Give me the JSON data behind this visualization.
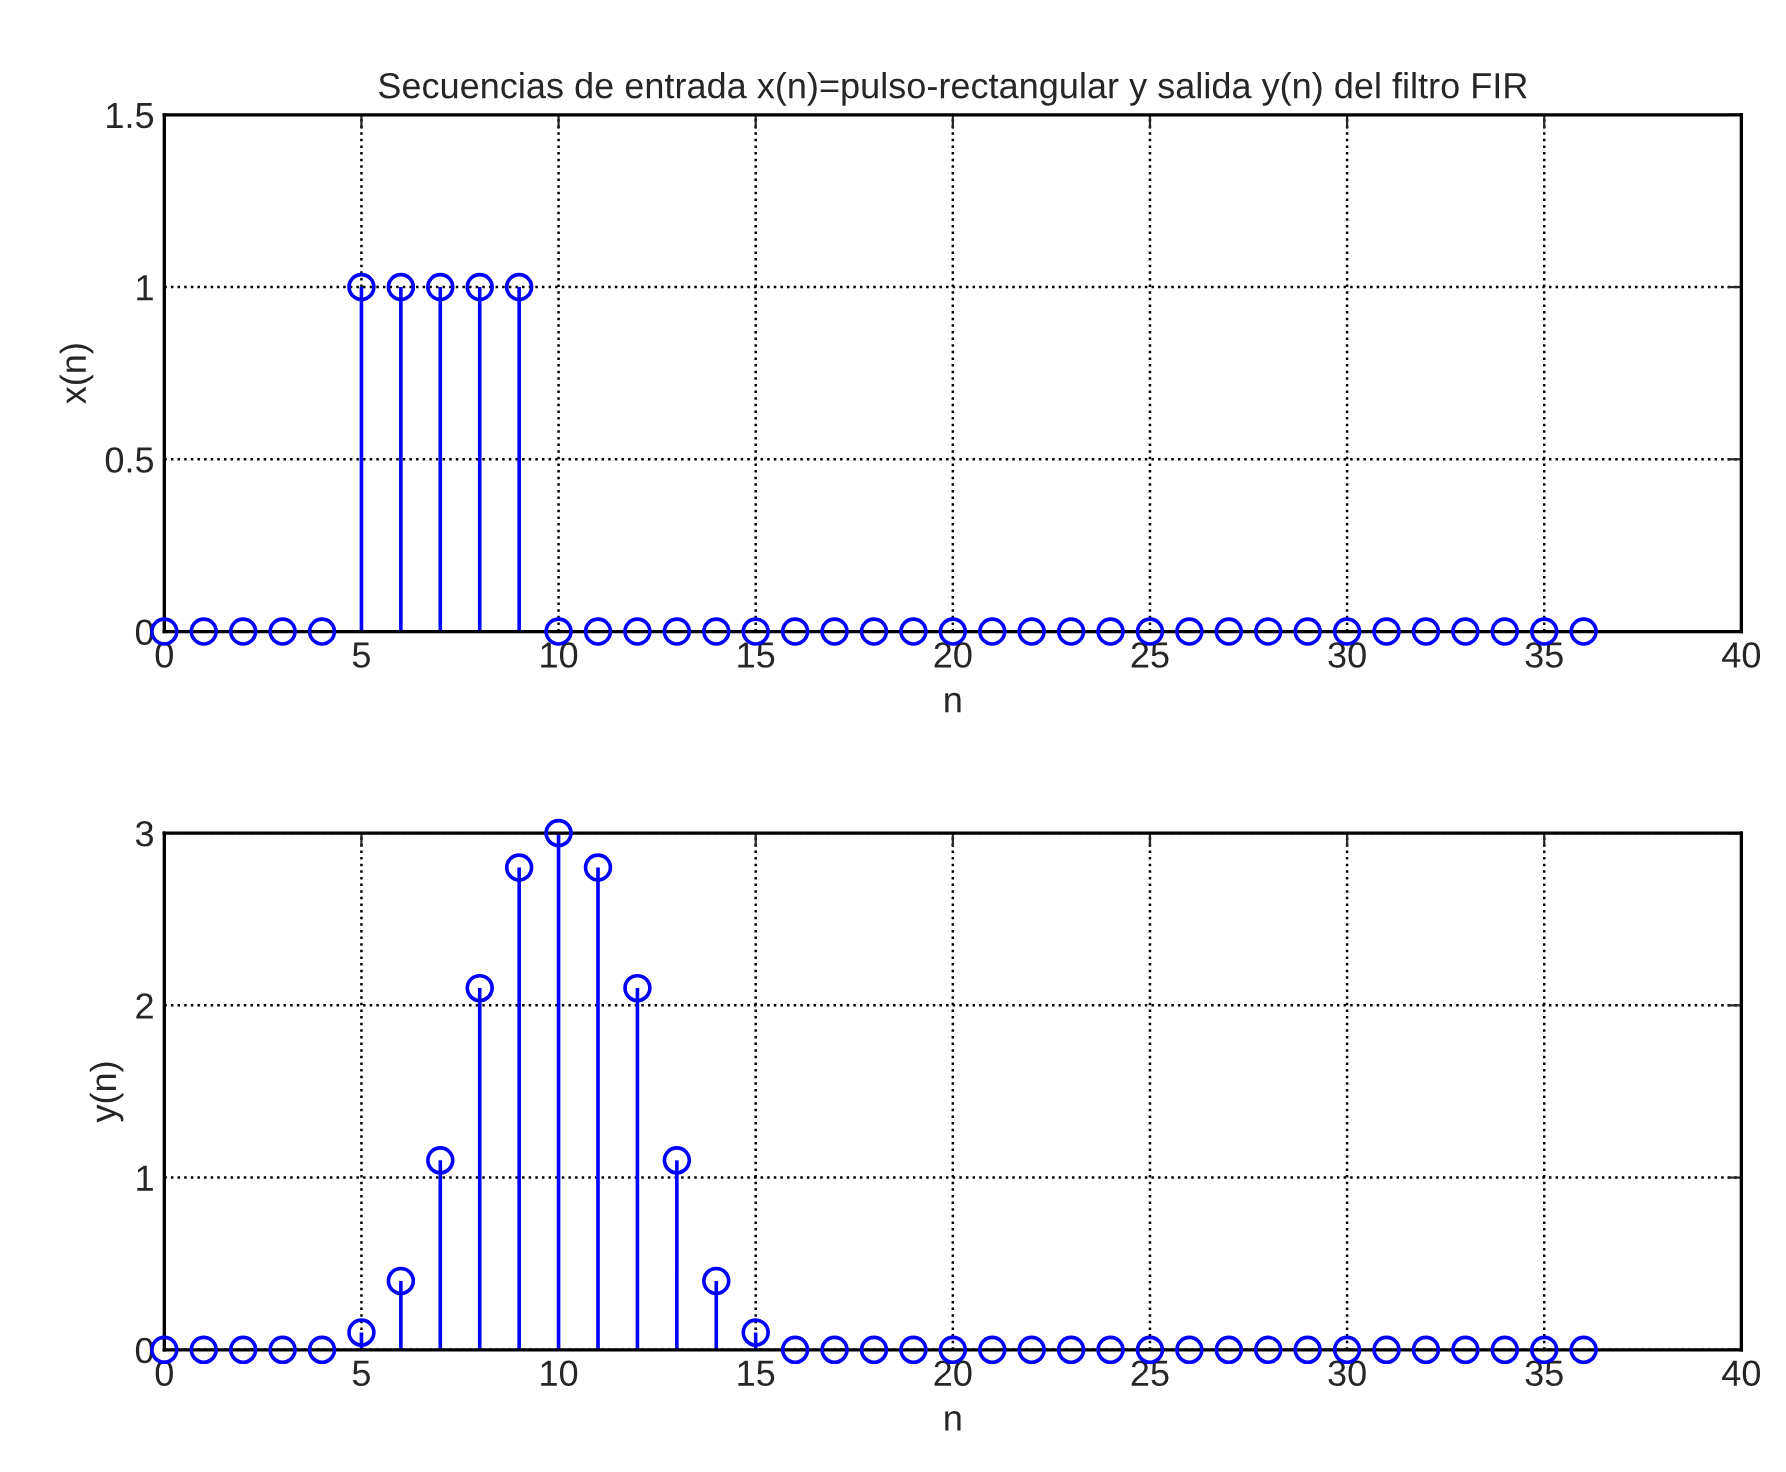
{
  "chart_data": [
    {
      "type": "lollipop",
      "title": "Secuencias de entrada x(n)=pulso-rectangular y salida y(n) del filtro FIR",
      "xlabel": "n",
      "ylabel": "x(n)",
      "x": [
        0,
        1,
        2,
        3,
        4,
        5,
        6,
        7,
        8,
        9,
        10,
        11,
        12,
        13,
        14,
        15,
        16,
        17,
        18,
        19,
        20,
        21,
        22,
        23,
        24,
        25,
        26,
        27,
        28,
        29,
        30,
        31,
        32,
        33,
        34,
        35,
        36
      ],
      "series": [
        {
          "color": "#0000ff",
          "values": [
            0,
            0,
            0,
            0,
            0,
            1,
            1,
            1,
            1,
            1,
            0,
            0,
            0,
            0,
            0,
            0,
            0,
            0,
            0,
            0,
            0,
            0,
            0,
            0,
            0,
            0,
            0,
            0,
            0,
            0,
            0,
            0,
            0,
            0,
            0,
            0,
            0
          ]
        }
      ],
      "xlim": [
        0,
        40
      ],
      "xticks": [
        0,
        5,
        10,
        15,
        20,
        25,
        30,
        35,
        40
      ],
      "ylim": [
        0,
        1.5
      ],
      "yticks": [
        0,
        0.5,
        1,
        1.5
      ],
      "grid": true,
      "marker": "circle"
    },
    {
      "type": "lollipop",
      "xlabel": "n",
      "ylabel": "y(n)",
      "x": [
        0,
        1,
        2,
        3,
        4,
        5,
        6,
        7,
        8,
        9,
        10,
        11,
        12,
        13,
        14,
        15,
        16,
        17,
        18,
        19,
        20,
        21,
        22,
        23,
        24,
        25,
        26,
        27,
        28,
        29,
        30,
        31,
        32,
        33,
        34,
        35,
        36
      ],
      "series": [
        {
          "color": "#0000ff",
          "values": [
            0,
            0,
            0,
            0,
            0,
            0.1,
            0.4,
            1.1,
            2.1,
            2.8,
            3,
            2.8,
            2.1,
            1.1,
            0.4,
            0.1,
            0,
            0,
            0,
            0,
            0,
            0,
            0,
            0,
            0,
            0,
            0,
            0,
            0,
            0,
            0,
            0,
            0,
            0,
            0,
            0,
            0
          ]
        }
      ],
      "xlim": [
        0,
        40
      ],
      "xticks": [
        0,
        5,
        10,
        15,
        20,
        25,
        30,
        35,
        40
      ],
      "ylim": [
        0,
        3
      ],
      "yticks": [
        0,
        1,
        2,
        3
      ],
      "grid": true,
      "marker": "circle"
    }
  ]
}
